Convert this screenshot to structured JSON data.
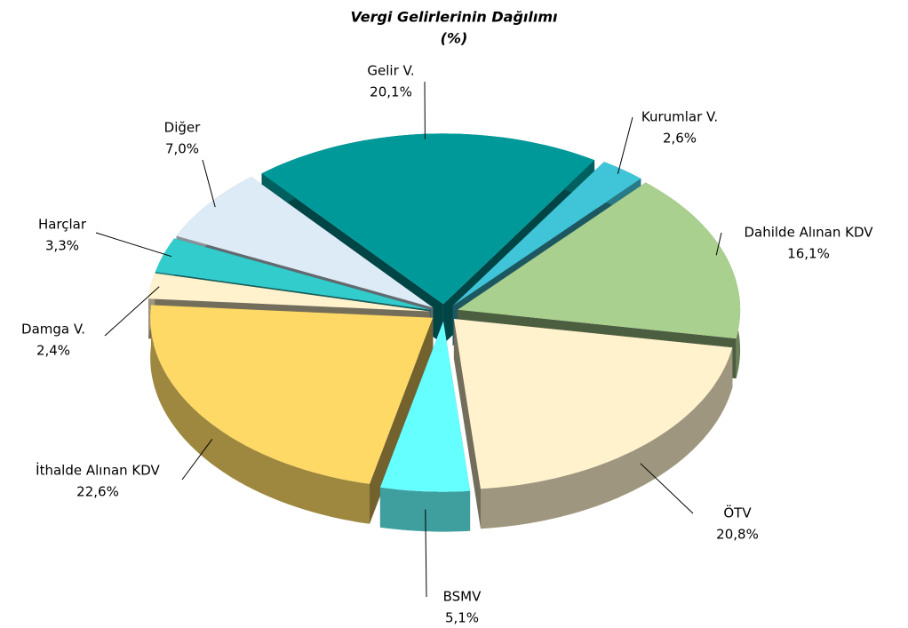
{
  "chart_data": {
    "type": "pie3d",
    "title": "Vergi Gelirlerinin Dağılımı",
    "subtitle": "(%)",
    "categories": [
      "Gelir V.",
      "Kurumlar V.",
      "Dahilde Alınan KDV",
      "ÖTV",
      "BSMV",
      "İthalde Alınan KDV",
      "Damga V.",
      "Harçlar",
      "Diğer"
    ],
    "values": [
      20.1,
      2.6,
      16.1,
      20.8,
      5.1,
      22.6,
      2.4,
      3.3,
      7.0
    ],
    "value_labels": [
      "20,1%",
      "2,6%",
      "16,1%",
      "20,8%",
      "5,1%",
      "22,6%",
      "2,4%",
      "3,3%",
      "7,0%"
    ],
    "colors": [
      "#00999a",
      "#40c4d8",
      "#a9d08e",
      "#fff2cc",
      "#66ffff",
      "#ffd966",
      "#fff2cc",
      "#33cccc",
      "#ddebf7"
    ]
  }
}
